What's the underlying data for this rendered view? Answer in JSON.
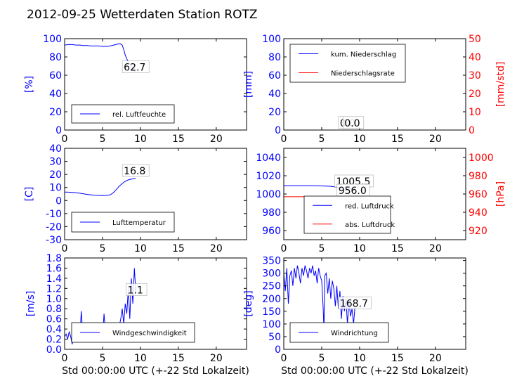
{
  "title": "2012-09-25 Wetterdaten Station ROTZ",
  "colors": {
    "primary": "#0000ff",
    "secondary": "#ff0000",
    "frame": "#000000"
  },
  "chart_data": [
    {
      "type": "line",
      "id": "humidity",
      "ylabel": "[%]",
      "xlim": [
        0,
        24
      ],
      "ylim": [
        0,
        100
      ],
      "xticks": [
        0,
        5,
        10,
        15,
        20
      ],
      "yticks": [
        0,
        20,
        40,
        60,
        80,
        100
      ],
      "legend": "bottom-left",
      "annotation": {
        "text": "62.7",
        "x": 7.8,
        "y": 65
      },
      "series": [
        {
          "name": "rel. Luftfeuchte",
          "color": "#0000ff",
          "x": [
            0,
            0.5,
            1,
            1.5,
            2,
            2.5,
            3,
            3.5,
            4,
            4.5,
            5,
            5.5,
            6,
            6.5,
            7,
            7.3,
            7.6,
            7.8,
            8,
            8.2,
            8.4,
            8.6,
            8.8,
            9,
            9.2,
            9.4
          ],
          "y": [
            93,
            93.5,
            93.5,
            93,
            93,
            92.5,
            92.5,
            92,
            92,
            92,
            91.5,
            91.5,
            92,
            93,
            94,
            94.5,
            93,
            88,
            82,
            78,
            74,
            72,
            70,
            68,
            65,
            63
          ]
        }
      ]
    },
    {
      "type": "line",
      "id": "precip",
      "ylabel": "[mm]",
      "ylabel2": "[mm/std]",
      "xlim": [
        0,
        24
      ],
      "ylim": [
        0,
        100
      ],
      "ylim2": [
        0,
        50
      ],
      "xticks": [
        0,
        5,
        10,
        15,
        20
      ],
      "yticks": [
        0,
        20,
        40,
        60,
        80,
        100
      ],
      "yticks2": [
        0,
        10,
        20,
        30,
        40,
        50
      ],
      "legend": "top-left",
      "annotations": [
        {
          "text": "0.0",
          "x": 7.4,
          "y": 4,
          "color": "#000000"
        },
        {
          "text": "0.0",
          "x": 8.0,
          "y": 4,
          "color": "#000000"
        }
      ],
      "series": [
        {
          "name": "kum. Niederschlag",
          "color": "#0000ff",
          "axis": "left",
          "x": [
            0,
            9.4
          ],
          "y": [
            0,
            0
          ]
        },
        {
          "name": "Niederschlagsrate",
          "color": "#ff0000",
          "axis": "right",
          "x": [
            0,
            9.4
          ],
          "y": [
            0,
            0
          ]
        }
      ]
    },
    {
      "type": "line",
      "id": "temperature",
      "ylabel": "[C]",
      "xlim": [
        0,
        24
      ],
      "ylim": [
        -30,
        40
      ],
      "xticks": [
        0,
        5,
        10,
        15,
        20
      ],
      "yticks": [
        -30,
        -20,
        -10,
        0,
        10,
        20,
        30,
        40
      ],
      "legend": "bottom-left",
      "annotation": {
        "text": "16.8",
        "x": 7.8,
        "y": 20
      },
      "series": [
        {
          "name": "Lufttemperatur",
          "color": "#0000ff",
          "x": [
            0,
            0.5,
            1,
            1.5,
            2,
            2.5,
            3,
            3.5,
            4,
            4.5,
            5,
            5.5,
            6,
            6.3,
            6.6,
            6.9,
            7.2,
            7.5,
            7.8,
            8.1,
            8.4,
            8.7,
            9,
            9.3,
            9.4
          ],
          "y": [
            6.5,
            6.4,
            6.2,
            5.9,
            5.6,
            5.1,
            4.7,
            4.3,
            4.0,
            3.9,
            3.8,
            3.9,
            4.3,
            5.5,
            7.0,
            9.0,
            11,
            12.5,
            14,
            15,
            15.8,
            16.3,
            16.6,
            16.8,
            16.8
          ]
        }
      ]
    },
    {
      "type": "line",
      "id": "pressure",
      "ylabel2": "[hPa]",
      "xlim": [
        0,
        24
      ],
      "ylim": [
        950,
        1050
      ],
      "ylim2": [
        910,
        1010
      ],
      "xticks": [
        0,
        5,
        10,
        15,
        20
      ],
      "yticks": [
        960,
        980,
        1000,
        1020,
        1040
      ],
      "yticks2": [
        920,
        940,
        960,
        980,
        1000
      ],
      "legend": "bottom-right",
      "annotations": [
        {
          "text": "1005.5",
          "x": 6.9,
          "y": 1010,
          "color": "#000000"
        },
        {
          "text": "956.0",
          "x": 7.2,
          "y": 1000,
          "color": "#000000"
        }
      ],
      "series": [
        {
          "name": "red. Luftdruck",
          "color": "#0000ff",
          "axis": "left",
          "x": [
            0,
            2,
            4,
            6,
            7,
            8,
            9.4
          ],
          "y": [
            1009,
            1009,
            1009,
            1008.5,
            1007.5,
            1006.5,
            1005.5
          ]
        },
        {
          "name": "abs. Luftdruck",
          "color": "#ff0000",
          "axis": "right",
          "x": [
            0,
            2,
            4,
            6,
            8,
            9.4
          ],
          "y": [
            957,
            957,
            957,
            956.5,
            956.2,
            956
          ]
        }
      ]
    },
    {
      "type": "line",
      "id": "windspeed",
      "ylabel": "[m/s]",
      "xlabel": "Std 00:00:00 UTC (+-22 Std Lokalzeit)",
      "xlim": [
        0,
        24
      ],
      "ylim": [
        0,
        1.8
      ],
      "xticks": [
        0,
        5,
        10,
        15,
        20
      ],
      "yticks": [
        0.0,
        0.2,
        0.4,
        0.6,
        0.8,
        1.0,
        1.2,
        1.4,
        1.6,
        1.8
      ],
      "legend": "bottom-right",
      "annotation": {
        "text": "1.1",
        "x": 8.3,
        "y": 1.1
      },
      "series": [
        {
          "name": "Windgeschwindigkeit",
          "color": "#0000ff",
          "x": [
            0,
            0.2,
            0.4,
            0.6,
            0.8,
            1.0,
            1.2,
            1.4,
            1.6,
            1.8,
            2.0,
            2.2,
            2.4,
            2.6,
            2.8,
            3.0,
            3.2,
            3.4,
            3.6,
            3.8,
            4.0,
            4.2,
            4.4,
            4.6,
            4.8,
            5.0,
            5.2,
            5.4,
            5.6,
            5.8,
            6.0,
            6.2,
            6.4,
            6.6,
            6.8,
            7.0,
            7.2,
            7.4,
            7.6,
            7.8,
            8.0,
            8.2,
            8.4,
            8.6,
            8.8,
            9.0,
            9.2,
            9.4
          ],
          "y": [
            0.25,
            0.3,
            0.2,
            0.35,
            0.25,
            0.1,
            0.3,
            0.2,
            0.15,
            0.3,
            0.2,
            0.75,
            0.3,
            0.2,
            0.35,
            0.25,
            0.4,
            0.2,
            0.3,
            0.45,
            0.25,
            0.3,
            0.2,
            0.35,
            0.3,
            0.25,
            0.7,
            0.3,
            0.2,
            0.35,
            0.25,
            0.3,
            0.2,
            0.4,
            0.3,
            0.25,
            0.45,
            0.6,
            0.8,
            0.5,
            0.9,
            0.7,
            1.2,
            0.6,
            1.4,
            0.9,
            1.6,
            1.1
          ]
        }
      ]
    },
    {
      "type": "line",
      "id": "winddir",
      "ylabel": "[deg]",
      "xlabel": "Std 00:00:00 UTC (+-22 Std Lokalzeit)",
      "xlim": [
        0,
        24
      ],
      "ylim": [
        0,
        360
      ],
      "xticks": [
        0,
        5,
        10,
        15,
        20
      ],
      "yticks": [
        0,
        50,
        100,
        150,
        200,
        250,
        300,
        350
      ],
      "legend": "bottom-left",
      "annotation": {
        "text": "168.7",
        "x": 7.4,
        "y": 168
      },
      "series": [
        {
          "name": "Windrichtung",
          "color": "#0000ff",
          "x": [
            0,
            0.2,
            0.4,
            0.6,
            0.8,
            1.0,
            1.2,
            1.4,
            1.6,
            1.8,
            2.0,
            2.2,
            2.4,
            2.6,
            2.8,
            3.0,
            3.2,
            3.4,
            3.6,
            3.8,
            4.0,
            4.2,
            4.4,
            4.6,
            4.8,
            5.0,
            5.2,
            5.3,
            5.4,
            5.6,
            5.8,
            6.0,
            6.2,
            6.4,
            6.6,
            6.8,
            7.0,
            7.2,
            7.4,
            7.6,
            7.8,
            8.0,
            8.2,
            8.4,
            8.6,
            8.8,
            9.0,
            9.2,
            9.4
          ],
          "y": [
            300,
            230,
            320,
            180,
            290,
            310,
            250,
            320,
            280,
            330,
            300,
            260,
            320,
            290,
            330,
            310,
            280,
            320,
            300,
            330,
            290,
            310,
            260,
            320,
            290,
            270,
            160,
            70,
            290,
            300,
            220,
            280,
            200,
            270,
            240,
            170,
            250,
            160,
            230,
            120,
            210,
            150,
            200,
            100,
            190,
            130,
            160,
            100,
            168
          ]
        }
      ]
    }
  ]
}
